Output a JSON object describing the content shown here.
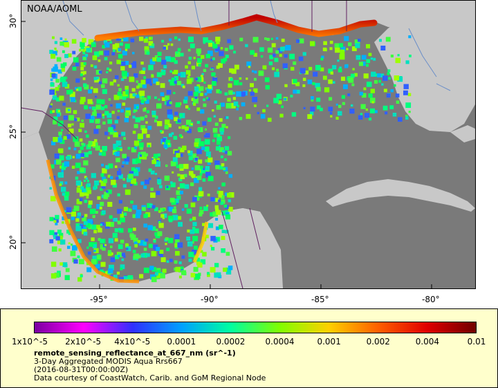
{
  "map": {
    "source_label": "NOAA/AOML",
    "lon_ticks": [
      "-95°",
      "-90°",
      "-85°",
      "-80°"
    ],
    "lat_ticks": [
      "30°",
      "25°",
      "20°"
    ]
  },
  "legend": {
    "colorbar_labels": [
      "1x10^-5",
      "2x10^-5",
      "4x10^-5",
      "0.0001",
      "0.0002",
      "0.0004",
      "0.001",
      "0.002",
      "0.004",
      "0.01"
    ],
    "colors": [
      "#7a00a0",
      "#ff00ff",
      "#3030ff",
      "#00a0ff",
      "#00ffa0",
      "#80ff00",
      "#ffd000",
      "#ff6000",
      "#e00000",
      "#700000"
    ],
    "title": "remote_sensing_reflectance_at_667_nm (sr^-1)",
    "line1": "3-Day Aggregated MODIS Aqua Rrs667",
    "line2": "(2016-08-31T00:00:00Z)",
    "line3": "Data courtesy of CoastWatch, Carib. and GoM Regional Node"
  }
}
